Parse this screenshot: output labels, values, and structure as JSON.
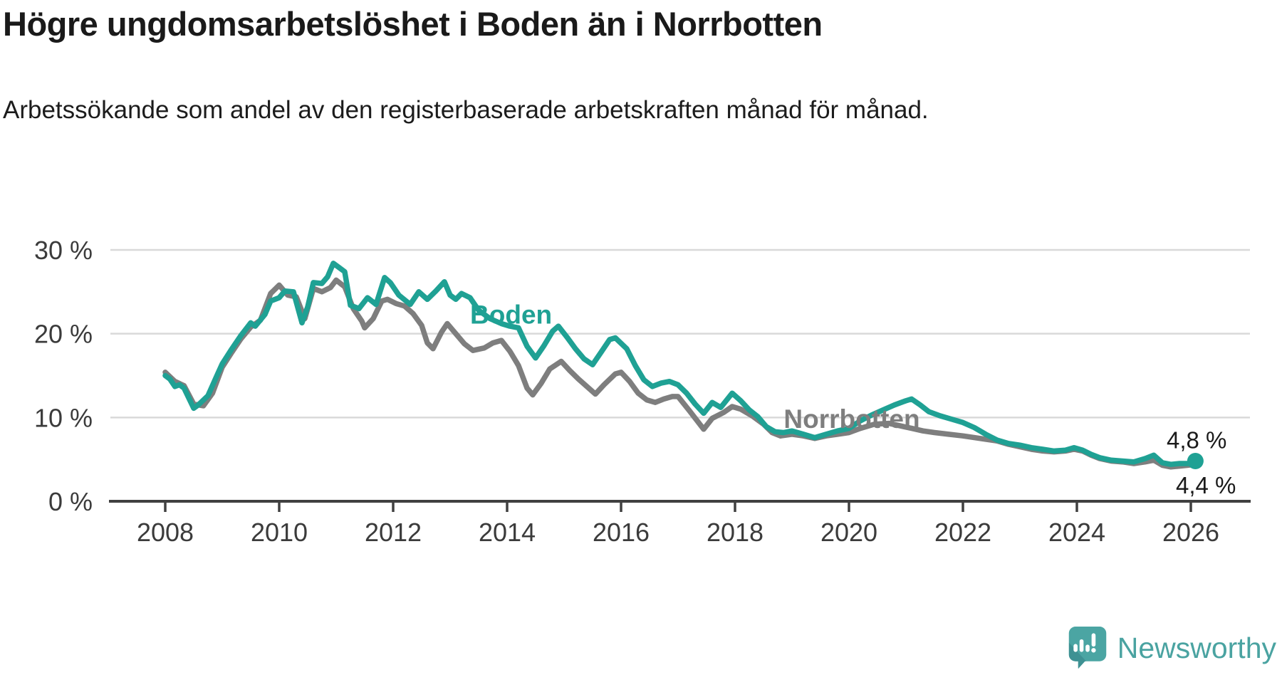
{
  "header": {
    "title": "Högre ungdomsarbetslöshet i Boden än i Norrbotten",
    "subtitle": "Arbetssökande som andel av den registerbaserade arbetskraften månad för månad."
  },
  "branding": {
    "logo_text": "Newsworthy",
    "logo_color": "#4aa3a1"
  },
  "chart_data": {
    "type": "line",
    "title": "Högre ungdomsarbetslöshet i Boden än i Norrbotten",
    "subtitle": "Arbetssökande som andel av den registerbaserade arbetskraften månad för månad.",
    "grid": "horizontal-only",
    "colors": {
      "grid": "#d9d9d9",
      "axis": "#404040",
      "tick_text": "#3b3b3b",
      "value_text": "#1a1a1a"
    },
    "x_axis": {
      "ticks": [
        2008,
        2010,
        2012,
        2014,
        2016,
        2018,
        2020,
        2022,
        2024,
        2026
      ],
      "tick_labels": [
        "2008",
        "2010",
        "2012",
        "2014",
        "2016",
        "2018",
        "2020",
        "2022",
        "2024",
        "2026"
      ],
      "range": [
        2007.04,
        2027.04
      ]
    },
    "y_axis": {
      "ticks": [
        0,
        10,
        20,
        30
      ],
      "tick_labels": [
        "0 %",
        "10 %",
        "20 %",
        "30 %"
      ],
      "range": [
        0,
        30
      ],
      "unit": "%"
    },
    "series": [
      {
        "name": "Boden",
        "color": "#1fa194",
        "end_label": "4,8 %",
        "end_dot": true,
        "label_pos": {
          "year": 2014.07,
          "value": 22.3
        },
        "points": [
          [
            2008.0,
            15.0
          ],
          [
            2008.08,
            14.6
          ],
          [
            2008.17,
            13.7
          ],
          [
            2008.25,
            13.9
          ],
          [
            2008.33,
            13.5
          ],
          [
            2008.5,
            11.1
          ],
          [
            2008.58,
            11.5
          ],
          [
            2008.75,
            12.6
          ],
          [
            2008.92,
            15.2
          ],
          [
            2009.0,
            16.4
          ],
          [
            2009.17,
            18.2
          ],
          [
            2009.33,
            19.8
          ],
          [
            2009.5,
            21.3
          ],
          [
            2009.58,
            20.9
          ],
          [
            2009.75,
            22.3
          ],
          [
            2009.85,
            23.9
          ],
          [
            2010.0,
            24.3
          ],
          [
            2010.1,
            25.1
          ],
          [
            2010.25,
            25.0
          ],
          [
            2010.4,
            21.3
          ],
          [
            2010.5,
            23.2
          ],
          [
            2010.6,
            26.1
          ],
          [
            2010.75,
            26.0
          ],
          [
            2010.85,
            26.8
          ],
          [
            2010.95,
            28.4
          ],
          [
            2011.05,
            27.9
          ],
          [
            2011.15,
            27.4
          ],
          [
            2011.25,
            23.4
          ],
          [
            2011.4,
            23.0
          ],
          [
            2011.55,
            24.3
          ],
          [
            2011.7,
            23.5
          ],
          [
            2011.85,
            26.7
          ],
          [
            2011.95,
            26.1
          ],
          [
            2012.1,
            24.6
          ],
          [
            2012.3,
            23.5
          ],
          [
            2012.45,
            25.0
          ],
          [
            2012.6,
            24.1
          ],
          [
            2012.75,
            25.1
          ],
          [
            2012.9,
            26.2
          ],
          [
            2013.0,
            24.6
          ],
          [
            2013.1,
            24.1
          ],
          [
            2013.2,
            24.8
          ],
          [
            2013.35,
            24.3
          ],
          [
            2013.5,
            22.8
          ],
          [
            2013.7,
            21.8
          ],
          [
            2013.9,
            21.2
          ],
          [
            2014.05,
            20.9
          ],
          [
            2014.2,
            20.7
          ],
          [
            2014.35,
            18.5
          ],
          [
            2014.5,
            17.1
          ],
          [
            2014.65,
            18.6
          ],
          [
            2014.8,
            20.3
          ],
          [
            2014.9,
            20.9
          ],
          [
            2015.05,
            19.6
          ],
          [
            2015.2,
            18.2
          ],
          [
            2015.35,
            17.0
          ],
          [
            2015.5,
            16.3
          ],
          [
            2015.65,
            17.8
          ],
          [
            2015.8,
            19.3
          ],
          [
            2015.9,
            19.5
          ],
          [
            2016.1,
            18.2
          ],
          [
            2016.25,
            16.2
          ],
          [
            2016.4,
            14.5
          ],
          [
            2016.55,
            13.7
          ],
          [
            2016.7,
            14.1
          ],
          [
            2016.85,
            14.3
          ],
          [
            2017.0,
            13.9
          ],
          [
            2017.15,
            12.9
          ],
          [
            2017.3,
            11.6
          ],
          [
            2017.45,
            10.5
          ],
          [
            2017.6,
            11.8
          ],
          [
            2017.75,
            11.2
          ],
          [
            2017.95,
            12.9
          ],
          [
            2018.1,
            12.0
          ],
          [
            2018.25,
            10.9
          ],
          [
            2018.4,
            10.1
          ],
          [
            2018.55,
            8.9
          ],
          [
            2018.7,
            8.3
          ],
          [
            2018.85,
            8.2
          ],
          [
            2019.0,
            8.4
          ],
          [
            2019.2,
            8.0
          ],
          [
            2019.4,
            7.6
          ],
          [
            2019.6,
            8.0
          ],
          [
            2019.8,
            8.4
          ],
          [
            2020.0,
            8.7
          ],
          [
            2020.2,
            9.6
          ],
          [
            2020.4,
            10.3
          ],
          [
            2020.6,
            10.9
          ],
          [
            2020.8,
            11.5
          ],
          [
            2021.0,
            12.0
          ],
          [
            2021.1,
            12.2
          ],
          [
            2021.25,
            11.5
          ],
          [
            2021.4,
            10.7
          ],
          [
            2021.6,
            10.2
          ],
          [
            2021.8,
            9.8
          ],
          [
            2022.0,
            9.4
          ],
          [
            2022.2,
            8.8
          ],
          [
            2022.4,
            8.0
          ],
          [
            2022.6,
            7.3
          ],
          [
            2022.8,
            6.9
          ],
          [
            2023.0,
            6.7
          ],
          [
            2023.2,
            6.4
          ],
          [
            2023.4,
            6.2
          ],
          [
            2023.6,
            6.0
          ],
          [
            2023.8,
            6.1
          ],
          [
            2023.95,
            6.4
          ],
          [
            2024.1,
            6.1
          ],
          [
            2024.25,
            5.6
          ],
          [
            2024.4,
            5.2
          ],
          [
            2024.6,
            4.9
          ],
          [
            2024.8,
            4.8
          ],
          [
            2025.0,
            4.7
          ],
          [
            2025.2,
            5.1
          ],
          [
            2025.35,
            5.5
          ],
          [
            2025.5,
            4.6
          ],
          [
            2025.65,
            4.4
          ],
          [
            2025.8,
            4.5
          ],
          [
            2025.95,
            4.5
          ],
          [
            2026.08,
            4.8
          ]
        ]
      },
      {
        "name": "Norrbotten",
        "color": "#7e7e7e",
        "end_label": "4,4 %",
        "end_dot": false,
        "label_pos": {
          "year": 2020.05,
          "value": 9.85
        },
        "points": [
          [
            2008.0,
            15.4
          ],
          [
            2008.17,
            14.3
          ],
          [
            2008.33,
            13.8
          ],
          [
            2008.5,
            11.6
          ],
          [
            2008.67,
            11.4
          ],
          [
            2008.83,
            12.9
          ],
          [
            2009.0,
            16.0
          ],
          [
            2009.17,
            17.8
          ],
          [
            2009.33,
            19.4
          ],
          [
            2009.5,
            20.8
          ],
          [
            2009.67,
            21.6
          ],
          [
            2009.85,
            24.8
          ],
          [
            2010.0,
            25.8
          ],
          [
            2010.15,
            24.6
          ],
          [
            2010.3,
            24.4
          ],
          [
            2010.45,
            21.8
          ],
          [
            2010.6,
            25.4
          ],
          [
            2010.75,
            25.0
          ],
          [
            2010.9,
            25.5
          ],
          [
            2011.0,
            26.4
          ],
          [
            2011.15,
            25.6
          ],
          [
            2011.3,
            23.0
          ],
          [
            2011.45,
            21.5
          ],
          [
            2011.5,
            20.7
          ],
          [
            2011.65,
            21.8
          ],
          [
            2011.8,
            23.9
          ],
          [
            2011.9,
            24.1
          ],
          [
            2012.05,
            23.6
          ],
          [
            2012.2,
            23.3
          ],
          [
            2012.35,
            22.4
          ],
          [
            2012.5,
            21.0
          ],
          [
            2012.6,
            18.9
          ],
          [
            2012.7,
            18.2
          ],
          [
            2012.85,
            20.2
          ],
          [
            2012.95,
            21.2
          ],
          [
            2013.1,
            20.0
          ],
          [
            2013.25,
            18.8
          ],
          [
            2013.4,
            18.0
          ],
          [
            2013.6,
            18.3
          ],
          [
            2013.75,
            18.9
          ],
          [
            2013.9,
            19.2
          ],
          [
            2014.05,
            17.9
          ],
          [
            2014.2,
            16.2
          ],
          [
            2014.35,
            13.5
          ],
          [
            2014.45,
            12.7
          ],
          [
            2014.6,
            14.1
          ],
          [
            2014.75,
            15.8
          ],
          [
            2014.95,
            16.7
          ],
          [
            2015.1,
            15.6
          ],
          [
            2015.25,
            14.6
          ],
          [
            2015.4,
            13.7
          ],
          [
            2015.55,
            12.8
          ],
          [
            2015.7,
            13.9
          ],
          [
            2015.9,
            15.2
          ],
          [
            2016.0,
            15.4
          ],
          [
            2016.15,
            14.3
          ],
          [
            2016.3,
            12.9
          ],
          [
            2016.45,
            12.1
          ],
          [
            2016.6,
            11.8
          ],
          [
            2016.75,
            12.2
          ],
          [
            2016.9,
            12.5
          ],
          [
            2017.0,
            12.5
          ],
          [
            2017.2,
            10.8
          ],
          [
            2017.45,
            8.6
          ],
          [
            2017.6,
            9.9
          ],
          [
            2017.8,
            10.6
          ],
          [
            2017.95,
            11.3
          ],
          [
            2018.1,
            11.0
          ],
          [
            2018.3,
            10.2
          ],
          [
            2018.5,
            9.2
          ],
          [
            2018.65,
            8.2
          ],
          [
            2018.8,
            7.8
          ],
          [
            2019.0,
            8.0
          ],
          [
            2019.2,
            7.8
          ],
          [
            2019.4,
            7.5
          ],
          [
            2019.6,
            7.8
          ],
          [
            2019.8,
            8.0
          ],
          [
            2020.0,
            8.2
          ],
          [
            2020.2,
            8.7
          ],
          [
            2020.45,
            9.2
          ],
          [
            2020.7,
            9.3
          ],
          [
            2020.9,
            9.0
          ],
          [
            2021.1,
            8.7
          ],
          [
            2021.3,
            8.4
          ],
          [
            2021.5,
            8.2
          ],
          [
            2021.75,
            8.0
          ],
          [
            2022.0,
            7.8
          ],
          [
            2022.2,
            7.6
          ],
          [
            2022.4,
            7.4
          ],
          [
            2022.6,
            7.2
          ],
          [
            2022.8,
            6.8
          ],
          [
            2023.0,
            6.5
          ],
          [
            2023.2,
            6.2
          ],
          [
            2023.4,
            6.0
          ],
          [
            2023.6,
            5.9
          ],
          [
            2023.8,
            6.0
          ],
          [
            2023.95,
            6.2
          ],
          [
            2024.1,
            6.0
          ],
          [
            2024.25,
            5.5
          ],
          [
            2024.4,
            5.1
          ],
          [
            2024.6,
            4.8
          ],
          [
            2024.8,
            4.7
          ],
          [
            2025.0,
            4.5
          ],
          [
            2025.2,
            4.7
          ],
          [
            2025.35,
            4.9
          ],
          [
            2025.5,
            4.3
          ],
          [
            2025.65,
            4.1
          ],
          [
            2025.8,
            4.2
          ],
          [
            2025.95,
            4.3
          ],
          [
            2026.08,
            4.4
          ]
        ]
      }
    ]
  }
}
